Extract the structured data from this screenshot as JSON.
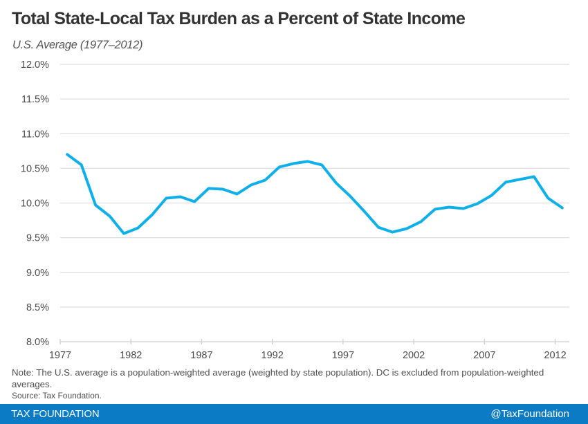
{
  "chart_data": {
    "type": "line",
    "title": "Total State-Local Tax Burden as a Percent of State Income",
    "subtitle": "U.S. Average (1977–2012)",
    "xlabel": "",
    "ylabel": "",
    "x": [
      1977,
      1978,
      1979,
      1980,
      1981,
      1982,
      1983,
      1984,
      1985,
      1986,
      1987,
      1988,
      1989,
      1990,
      1991,
      1992,
      1993,
      1994,
      1995,
      1996,
      1997,
      1998,
      1999,
      2000,
      2001,
      2002,
      2003,
      2004,
      2005,
      2006,
      2007,
      2008,
      2009,
      2010,
      2011,
      2012
    ],
    "series": [
      {
        "name": "U.S. Average",
        "color": "#0fb0ea",
        "values": [
          10.7,
          10.55,
          9.97,
          9.81,
          9.56,
          9.64,
          9.83,
          10.07,
          10.09,
          10.02,
          10.21,
          10.2,
          10.13,
          10.26,
          10.33,
          10.52,
          10.57,
          10.6,
          10.55,
          10.29,
          10.1,
          9.88,
          9.65,
          9.58,
          9.63,
          9.73,
          9.91,
          9.94,
          9.92,
          9.99,
          10.11,
          10.3,
          10.34,
          10.38,
          10.07,
          9.93
        ]
      }
    ],
    "ylim": [
      8.0,
      12.0
    ],
    "yticks": [
      8.0,
      8.5,
      9.0,
      9.5,
      10.0,
      10.5,
      11.0,
      11.5,
      12.0
    ],
    "ytick_labels": [
      "8.0%",
      "8.5%",
      "9.0%",
      "9.5%",
      "10.0%",
      "10.5%",
      "11.0%",
      "11.5%",
      "12.0%"
    ],
    "xticks": [
      1977,
      1982,
      1987,
      1992,
      1997,
      2002,
      2007,
      2012
    ],
    "xtick_labels": [
      "1977",
      "1982",
      "1987",
      "1992",
      "1997",
      "2002",
      "2007",
      "2012"
    ],
    "grid": true,
    "legend": "none"
  },
  "header": {
    "title": "Total State-Local Tax Burden as a Percent of State Income",
    "subtitle": "U.S. Average (1977–2012)"
  },
  "notes": {
    "note": "Note: The U.S. average is a population-weighted average (weighted by state population). DC is excluded from population-weighted averages.",
    "source": "Source: Tax Foundation."
  },
  "footer": {
    "brand": "TAX FOUNDATION",
    "handle": "@TaxFoundation",
    "background": "#0a7bc4"
  }
}
